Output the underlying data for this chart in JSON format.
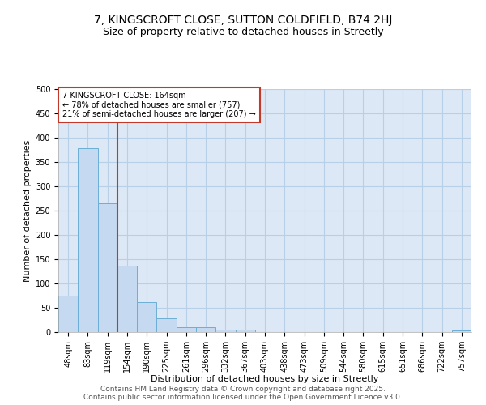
{
  "title1": "7, KINGSCROFT CLOSE, SUTTON COLDFIELD, B74 2HJ",
  "title2": "Size of property relative to detached houses in Streetly",
  "xlabel": "Distribution of detached houses by size in Streetly",
  "ylabel": "Number of detached properties",
  "categories": [
    "48sqm",
    "83sqm",
    "119sqm",
    "154sqm",
    "190sqm",
    "225sqm",
    "261sqm",
    "296sqm",
    "332sqm",
    "367sqm",
    "403sqm",
    "438sqm",
    "473sqm",
    "509sqm",
    "544sqm",
    "580sqm",
    "615sqm",
    "651sqm",
    "686sqm",
    "722sqm",
    "757sqm"
  ],
  "values": [
    75,
    378,
    265,
    137,
    61,
    29,
    10,
    10,
    5,
    5,
    0,
    0,
    0,
    0,
    0,
    0,
    0,
    0,
    0,
    0,
    3
  ],
  "bar_color": "#c5d9f0",
  "bar_edge_color": "#6baed6",
  "grid_color": "#b8cfe8",
  "background_color": "#dce8f5",
  "vline_color": "#c0392b",
  "vline_pos": 2.5,
  "annotation_text": "7 KINGSCROFT CLOSE: 164sqm\n← 78% of detached houses are smaller (757)\n21% of semi-detached houses are larger (207) →",
  "annotation_box_color": "#c0392b",
  "footer1": "Contains HM Land Registry data © Crown copyright and database right 2025.",
  "footer2": "Contains public sector information licensed under the Open Government Licence v3.0.",
  "ylim": [
    0,
    500
  ],
  "yticks": [
    0,
    50,
    100,
    150,
    200,
    250,
    300,
    350,
    400,
    450,
    500
  ],
  "title1_fontsize": 10,
  "title2_fontsize": 9,
  "axis_label_fontsize": 8,
  "tick_fontsize": 7,
  "footer_fontsize": 6.5,
  "annot_fontsize": 7
}
